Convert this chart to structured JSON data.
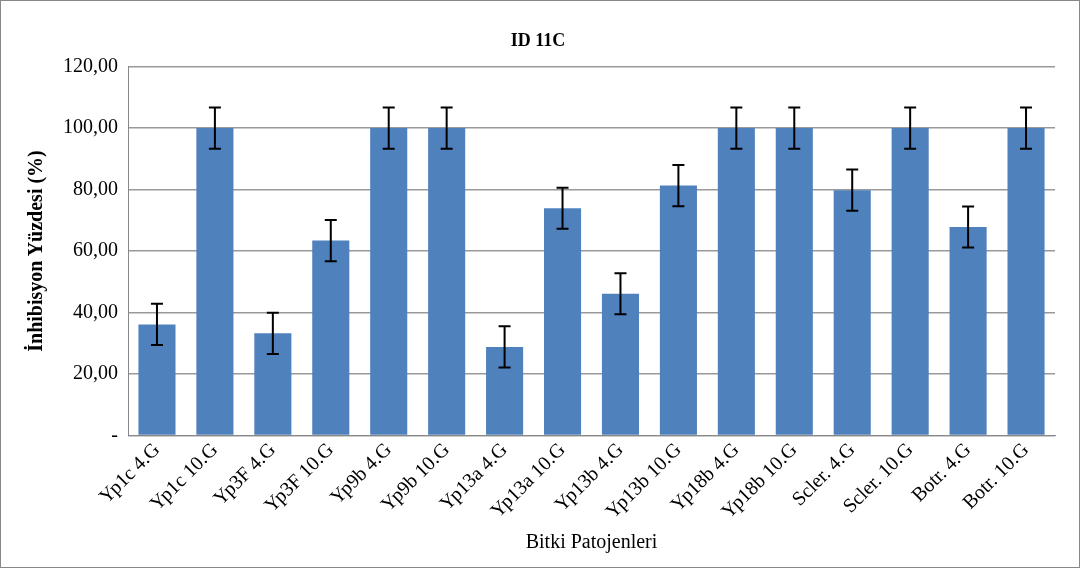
{
  "chart_data": {
    "type": "bar",
    "title": "ID 11C",
    "xlabel": "Bitki Patojenleri",
    "ylabel": "İnhibisyon Yüzdesi (%)",
    "categories": [
      "Yp1c 4.G",
      "Yp1c 10.G",
      "Yp3F 4.G",
      "Yp3F 10.G",
      "Yp9b 4.G",
      "Yp9b 10.G",
      "Yp13a 4.G",
      "Yp13a 10.G",
      "Yp13b 4.G",
      "Yp13b 10.G",
      "Yp18b 4.G",
      "Yp18b 10.G",
      "Scler. 4.G",
      "Scler. 10.G",
      "Botr. 4.G",
      "Botr. 10.G"
    ],
    "values": [
      36.1,
      100,
      33.2,
      63.4,
      100,
      100,
      28.8,
      73.9,
      46.1,
      81.3,
      100,
      100,
      79.8,
      100,
      67.8,
      100
    ],
    "errors": [
      6.7,
      6.7,
      6.7,
      6.7,
      6.7,
      6.7,
      6.7,
      6.7,
      6.7,
      6.7,
      6.7,
      6.7,
      6.7,
      6.7,
      6.7,
      6.7
    ],
    "color": "#4f81bd",
    "ylim": [
      0,
      120
    ],
    "yticks": [
      {
        "value": 0,
        "label": "-"
      },
      {
        "value": 20,
        "label": "20,00"
      },
      {
        "value": 40,
        "label": "40,00"
      },
      {
        "value": 60,
        "label": "60,00"
      },
      {
        "value": 80,
        "label": "80,00"
      },
      {
        "value": 100,
        "label": "100,00"
      },
      {
        "value": 120,
        "label": "120,00"
      }
    ],
    "grid": "y",
    "legend": false
  }
}
